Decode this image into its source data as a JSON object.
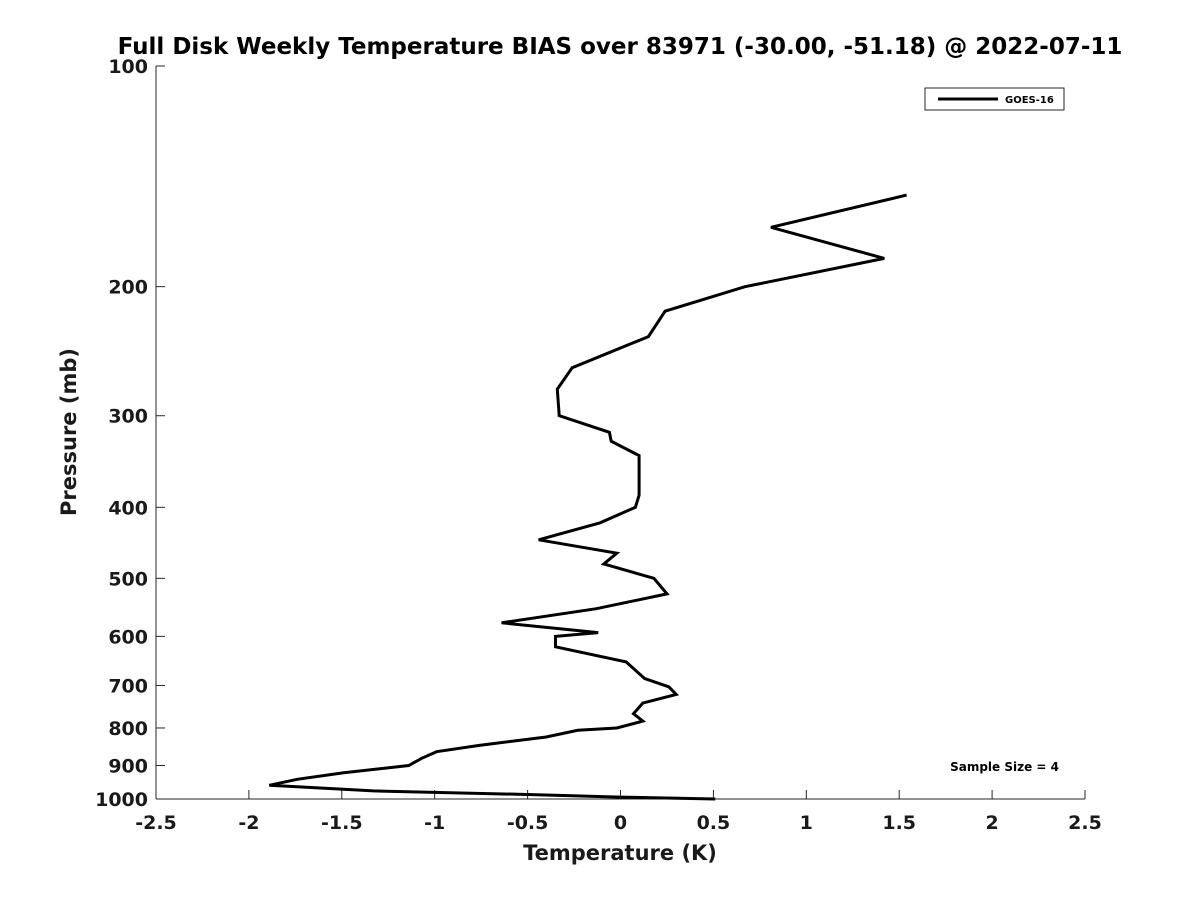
{
  "chart_data": {
    "type": "line",
    "title": "Full Disk Weekly Temperature BIAS over 83971 (-30.00, -51.18) @ 2022-07-11",
    "xlabel": "Temperature (K)",
    "ylabel": "Pressure (mb)",
    "xlim": [
      -2.5,
      2.5
    ],
    "ylim": [
      100,
      1000
    ],
    "y_scale": "log",
    "y_reversed": true,
    "x_ticks": [
      "-2.5",
      "-2",
      "-1.5",
      "-1",
      "-0.5",
      "0",
      "0.5",
      "1",
      "1.5",
      "2",
      "2.5"
    ],
    "y_ticks": [
      "100",
      "200",
      "300",
      "400",
      "500",
      "600",
      "700",
      "800",
      "900",
      "1000"
    ],
    "grid": false,
    "legend_position": "top-right",
    "annotation": "Sample Size = 4",
    "series": [
      {
        "name": "GOES-16",
        "color": "#000000",
        "points": [
          {
            "x": 1.54,
            "y": 150
          },
          {
            "x": 0.81,
            "y": 166
          },
          {
            "x": 1.42,
            "y": 183
          },
          {
            "x": 0.67,
            "y": 200
          },
          {
            "x": 0.24,
            "y": 216
          },
          {
            "x": 0.15,
            "y": 234
          },
          {
            "x": -0.26,
            "y": 258
          },
          {
            "x": -0.34,
            "y": 276
          },
          {
            "x": -0.33,
            "y": 300
          },
          {
            "x": -0.06,
            "y": 316
          },
          {
            "x": -0.05,
            "y": 325
          },
          {
            "x": 0.1,
            "y": 340
          },
          {
            "x": 0.1,
            "y": 362
          },
          {
            "x": 0.1,
            "y": 385
          },
          {
            "x": 0.08,
            "y": 400
          },
          {
            "x": -0.11,
            "y": 420
          },
          {
            "x": -0.44,
            "y": 443
          },
          {
            "x": -0.02,
            "y": 462
          },
          {
            "x": -0.09,
            "y": 478
          },
          {
            "x": 0.18,
            "y": 500
          },
          {
            "x": 0.25,
            "y": 525
          },
          {
            "x": -0.13,
            "y": 550
          },
          {
            "x": -0.64,
            "y": 575
          },
          {
            "x": -0.12,
            "y": 593
          },
          {
            "x": -0.35,
            "y": 600
          },
          {
            "x": -0.35,
            "y": 620
          },
          {
            "x": 0.03,
            "y": 650
          },
          {
            "x": 0.13,
            "y": 685
          },
          {
            "x": 0.26,
            "y": 703
          },
          {
            "x": 0.3,
            "y": 720
          },
          {
            "x": 0.12,
            "y": 740
          },
          {
            "x": 0.07,
            "y": 765
          },
          {
            "x": 0.12,
            "y": 783
          },
          {
            "x": -0.02,
            "y": 800
          },
          {
            "x": -0.23,
            "y": 806
          },
          {
            "x": -0.4,
            "y": 823
          },
          {
            "x": -0.76,
            "y": 845
          },
          {
            "x": -0.99,
            "y": 862
          },
          {
            "x": -1.07,
            "y": 880
          },
          {
            "x": -1.14,
            "y": 900
          },
          {
            "x": -1.49,
            "y": 921
          },
          {
            "x": -1.74,
            "y": 940
          },
          {
            "x": -1.89,
            "y": 958
          },
          {
            "x": -1.33,
            "y": 975
          },
          {
            "x": -0.5,
            "y": 986
          },
          {
            "x": 0.0,
            "y": 994
          },
          {
            "x": 0.51,
            "y": 1000
          }
        ]
      }
    ]
  }
}
